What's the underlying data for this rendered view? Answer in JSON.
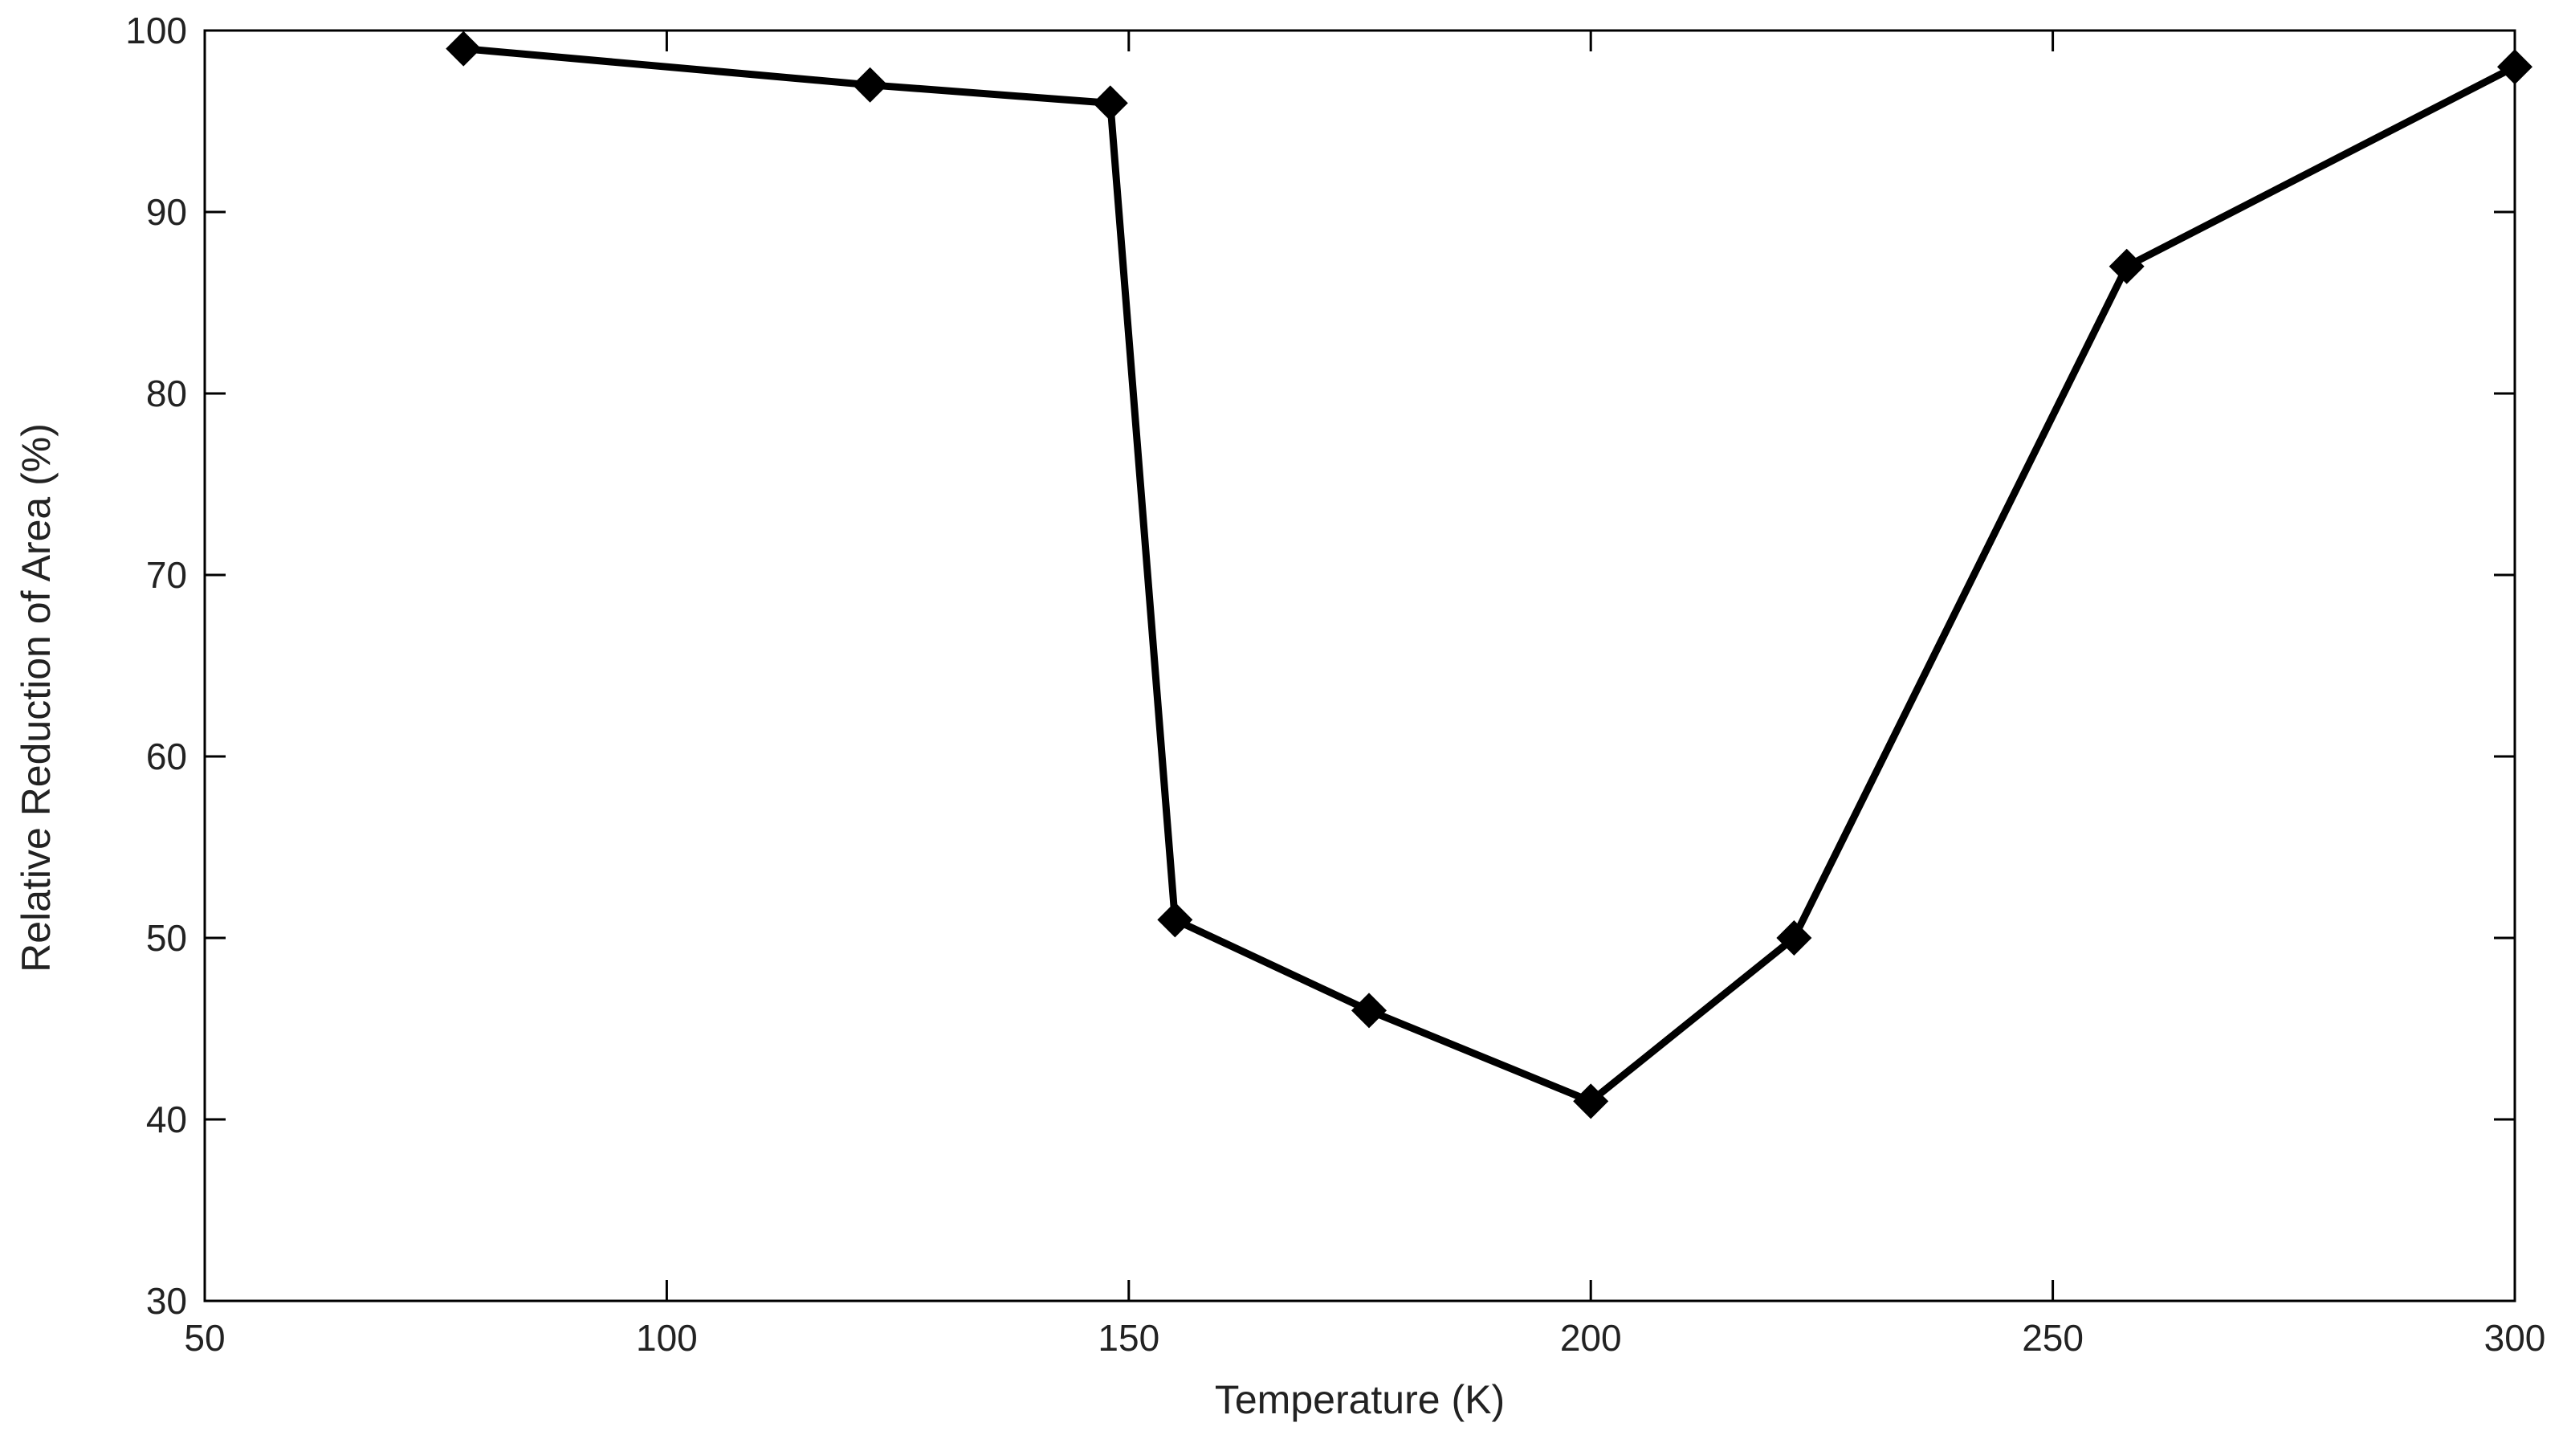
{
  "chart_data": {
    "type": "line",
    "title": "",
    "xlabel": "Temperature (K)",
    "ylabel": "Relative Reduction of Area (%)",
    "xlim": [
      50,
      300
    ],
    "ylim": [
      30,
      100
    ],
    "xticks": [
      50,
      100,
      150,
      200,
      250,
      300
    ],
    "yticks": [
      30,
      40,
      50,
      60,
      70,
      80,
      90,
      100
    ],
    "grid": false,
    "legend": "none",
    "marker": "diamond",
    "line_color": "#000000",
    "series": [
      {
        "x": [
          78,
          122,
          148,
          155,
          176,
          200,
          222,
          258,
          300
        ],
        "y": [
          99,
          97,
          96,
          51,
          46,
          41,
          50,
          87,
          98
        ]
      }
    ]
  }
}
